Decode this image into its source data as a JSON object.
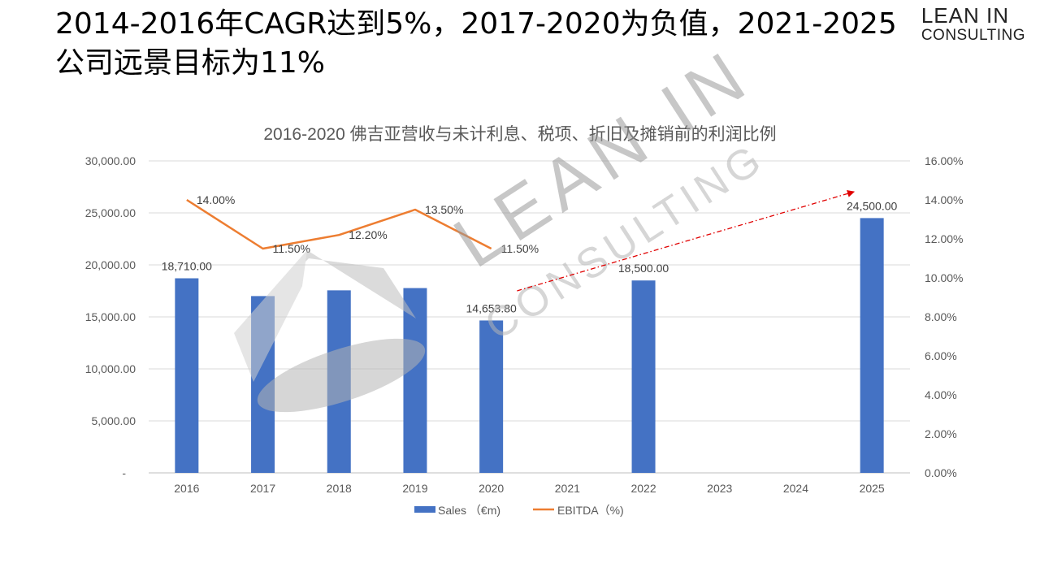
{
  "headline": {
    "line1": "2014-2016年CAGR达到5%，2017-2020为负值，2021-2025",
    "line2": "公司远景目标为11%"
  },
  "logo": {
    "line1": "LEAN IN",
    "line2": "CONSULTING"
  },
  "watermark": {
    "line1": "LEAN IN",
    "line2": "CONSULTING"
  },
  "chart_data": {
    "type": "bar",
    "title": "2016-2020 佛吉亚营收与未计利息、税项、折旧及摊销前的利润比例",
    "categories": [
      "2016",
      "2017",
      "2018",
      "2019",
      "2020",
      "2021",
      "2022",
      "2023",
      "2024",
      "2025"
    ],
    "series": [
      {
        "name": "Sales （€m)",
        "type": "bar",
        "axis": "left",
        "color": "#4472C4",
        "values": [
          18710,
          17000,
          17550,
          17770,
          14653.8,
          null,
          18500,
          null,
          null,
          24500
        ],
        "labels": [
          "18,710.00",
          null,
          null,
          null,
          "14,653.80",
          null,
          "18,500.00",
          null,
          null,
          "24,500.00"
        ]
      },
      {
        "name": "EBITDA（%)",
        "type": "line",
        "axis": "right",
        "color": "#ED7D31",
        "values": [
          14.0,
          11.5,
          12.2,
          13.5,
          11.5,
          null,
          null,
          null,
          null,
          null
        ],
        "labels": [
          "14.00%",
          "11.50%",
          "12.20%",
          "13.50%",
          "11.50%",
          null,
          null,
          null,
          null,
          null
        ]
      }
    ],
    "trend_arrow": {
      "from_category": "2021",
      "to_category": "2025",
      "color": "#E00000",
      "style": "dash-dot"
    },
    "y_left": {
      "ylim": [
        0,
        30000
      ],
      "ticks": [
        "-",
        "5,000.00",
        "10,000.00",
        "15,000.00",
        "20,000.00",
        "25,000.00",
        "30,000.00"
      ]
    },
    "y_right": {
      "ylim": [
        0,
        16
      ],
      "ticks": [
        "0.00%",
        "2.00%",
        "4.00%",
        "6.00%",
        "8.00%",
        "10.00%",
        "12.00%",
        "14.00%",
        "16.00%"
      ]
    },
    "grid": true,
    "legend_position": "bottom"
  }
}
